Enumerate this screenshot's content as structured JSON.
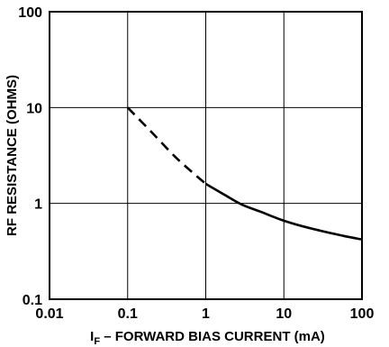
{
  "chart_data": {
    "type": "line",
    "xlabel_main": "I",
    "xlabel_sub": "F",
    "xlabel_rest": " – FORWARD BIAS CURRENT (mA)",
    "ylabel": "RF RESISTANCE (OHMS)",
    "x_scale": "log",
    "y_scale": "log",
    "xlim": [
      0.01,
      100
    ],
    "ylim": [
      0.1,
      100
    ],
    "x_ticks": [
      0.01,
      0.1,
      1,
      10,
      100
    ],
    "x_tick_labels": [
      "0.01",
      "0.1",
      "1",
      "10",
      "100"
    ],
    "y_ticks": [
      0.1,
      1,
      10,
      100
    ],
    "y_tick_labels": [
      "0.1",
      "1",
      "10",
      "100"
    ],
    "grid": true,
    "series": [
      {
        "style": "dashed",
        "x": [
          0.1,
          0.2,
          0.4,
          0.7,
          1.0
        ],
        "y": [
          10,
          5.6,
          3.1,
          2.05,
          1.6
        ]
      },
      {
        "style": "solid",
        "x": [
          1.0,
          2.0,
          3.0,
          5.0,
          10,
          20,
          50,
          100
        ],
        "y": [
          1.6,
          1.15,
          0.96,
          0.82,
          0.66,
          0.56,
          0.47,
          0.42
        ]
      }
    ],
    "colors": {
      "line": "#000000",
      "grid": "#000000"
    }
  }
}
